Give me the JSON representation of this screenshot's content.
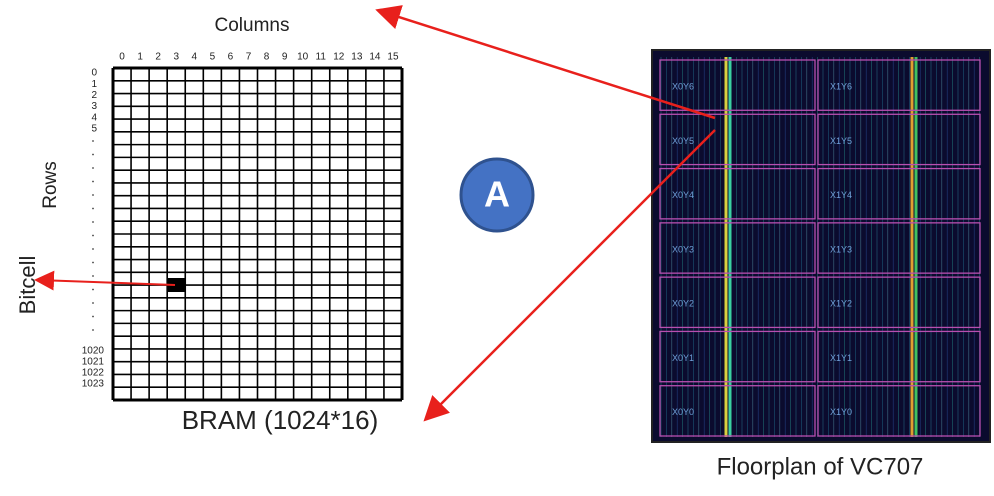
{
  "bram": {
    "axis_title": "Columns",
    "columns": [
      "0",
      "1",
      "2",
      "3",
      "4",
      "5",
      "6",
      "7",
      "8",
      "9",
      "10",
      "11",
      "12",
      "13",
      "14",
      "15"
    ],
    "rows_title": "Rows",
    "top_rows": [
      "0",
      "1",
      "2",
      "3",
      "4",
      "5"
    ],
    "bottom_rows": [
      "1020",
      "1021",
      "1022",
      "1023"
    ],
    "bitcell": "Bitcell",
    "caption": "BRAM (1024*16)"
  },
  "badge": "A",
  "floorplan": {
    "caption": "Floorplan of VC707",
    "regions": [
      "X0Y6",
      "X1Y6",
      "X0Y5",
      "X1Y5",
      "X0Y4",
      "X1Y4",
      "X0Y3",
      "X1Y3",
      "X0Y2",
      "X1Y2",
      "X0Y1",
      "X1Y1",
      "X0Y0",
      "X1Y0"
    ]
  }
}
